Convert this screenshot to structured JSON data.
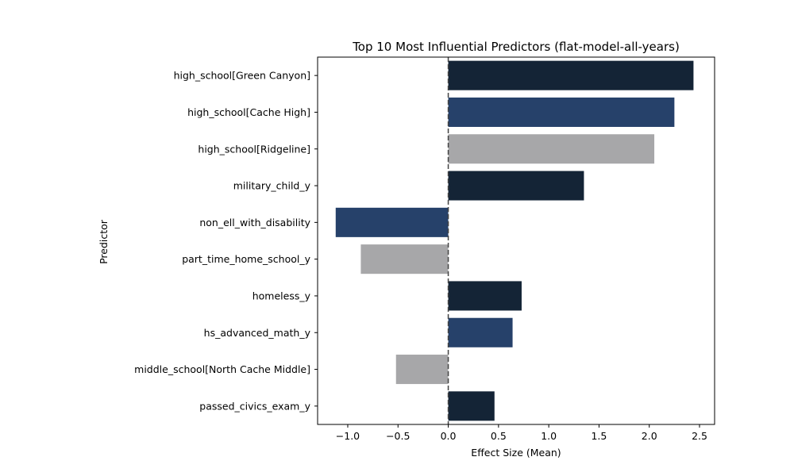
{
  "chart_data": {
    "type": "bar",
    "orientation": "horizontal",
    "title": "Top 10 Most Influential Predictors (flat-model-all-years)",
    "xlabel": "Effect Size (Mean)",
    "ylabel": "Predictor",
    "xlim": [
      -1.3,
      2.65
    ],
    "xticks": [
      -1.0,
      -0.5,
      0.0,
      0.5,
      1.0,
      1.5,
      2.0,
      2.5
    ],
    "xtick_labels": [
      "−1.0",
      "−0.5",
      "0.0",
      "0.5",
      "1.0",
      "1.5",
      "2.0",
      "2.5"
    ],
    "grid": false,
    "reference_line": {
      "x": 0,
      "style": "dashed",
      "color": "#444444"
    },
    "categories": [
      "high_school[Green Canyon]",
      "high_school[Cache High]",
      "high_school[Ridgeline]",
      "military_child_y",
      "non_ell_with_disability",
      "part_time_home_school_y",
      "homeless_y",
      "hs_advanced_math_y",
      "middle_school[North Cache Middle]",
      "passed_civics_exam_y"
    ],
    "values": [
      2.44,
      2.25,
      2.05,
      1.35,
      -1.12,
      -0.87,
      0.73,
      0.64,
      -0.52,
      0.46
    ],
    "colors": [
      "#142436",
      "#26416a",
      "#a7a7a9",
      "#142436",
      "#26416a",
      "#a7a7a9",
      "#142436",
      "#26416a",
      "#a7a7a9",
      "#142436"
    ]
  }
}
